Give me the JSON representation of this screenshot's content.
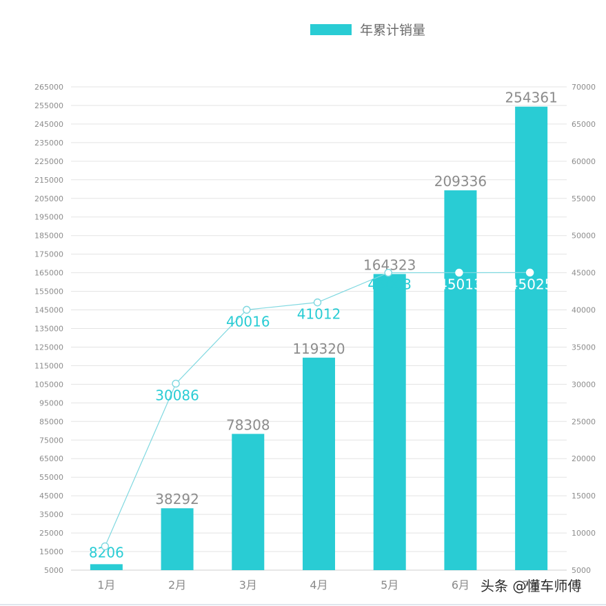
{
  "chart_data": {
    "type": "bar",
    "categories": [
      "1月",
      "2月",
      "3月",
      "4月",
      "5月",
      "6月",
      "7月"
    ],
    "series": [
      {
        "name": "年累计销量",
        "type": "bar",
        "axis": "left",
        "color": "#29ccd4",
        "values": [
          8206,
          38292,
          78308,
          119320,
          164323,
          209336,
          254361
        ]
      },
      {
        "type": "line",
        "axis": "right",
        "color": "#7fd8e0",
        "label_color": "#29ccd4",
        "values": [
          8206,
          30086,
          40016,
          41012,
          45003,
          45013,
          45025
        ]
      }
    ],
    "y_left": {
      "ylim": [
        5000,
        265000
      ],
      "ticks": [
        5000,
        15000,
        25000,
        35000,
        45000,
        55000,
        65000,
        75000,
        85000,
        95000,
        105000,
        115000,
        125000,
        135000,
        145000,
        155000,
        165000,
        175000,
        185000,
        195000,
        205000,
        215000,
        225000,
        235000,
        245000,
        255000,
        265000
      ]
    },
    "y_right": {
      "ylim": [
        5000,
        70000
      ],
      "ticks": [
        5000,
        10000,
        15000,
        20000,
        25000,
        30000,
        35000,
        40000,
        45000,
        50000,
        55000,
        60000,
        65000,
        70000
      ]
    },
    "grid": true,
    "legend": "top-center",
    "xlabel": "",
    "ylabel": "",
    "title": ""
  },
  "legend": {
    "label": "年累计销量"
  },
  "watermark": "头条 @懂车师傅"
}
